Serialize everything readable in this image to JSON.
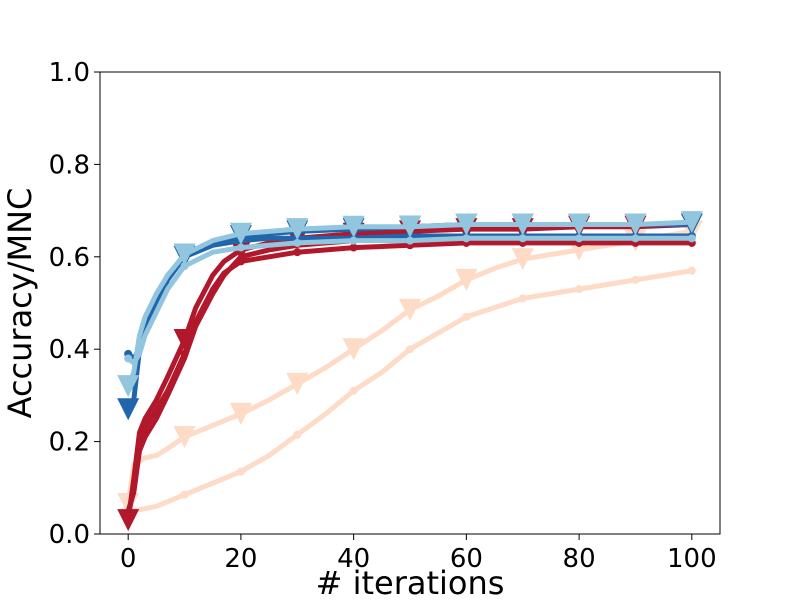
{
  "chart_data": {
    "type": "line",
    "title": "",
    "xlabel": "# iterations",
    "ylabel": "Accuracy/MNC",
    "xlim": [
      -5,
      105
    ],
    "ylim": [
      0.0,
      1.0
    ],
    "xticks": [
      0,
      20,
      40,
      60,
      80,
      100
    ],
    "yticks": [
      0.0,
      0.2,
      0.4,
      0.6,
      0.8,
      1.0
    ],
    "xtick_labels": [
      "0",
      "20",
      "40",
      "60",
      "80",
      "100"
    ],
    "ytick_labels": [
      "0.0",
      "0.2",
      "0.4",
      "0.6",
      "0.8",
      "1.0"
    ],
    "grid": false,
    "legend": false,
    "series": [
      {
        "color": "#fddbc7",
        "marker": "circle",
        "x": [
          0,
          1,
          3,
          5,
          7,
          10,
          15,
          20,
          25,
          30,
          35,
          40,
          45,
          50,
          55,
          60,
          65,
          70,
          75,
          80,
          85,
          90,
          95,
          100
        ],
        "y": [
          0.05,
          0.05,
          0.055,
          0.06,
          0.07,
          0.085,
          0.11,
          0.135,
          0.17,
          0.215,
          0.26,
          0.31,
          0.35,
          0.4,
          0.435,
          0.47,
          0.49,
          0.51,
          0.52,
          0.53,
          0.54,
          0.55,
          0.56,
          0.57
        ]
      },
      {
        "color": "#fddbc7",
        "marker": "triangle-down",
        "x": [
          0,
          1,
          3,
          5,
          7,
          10,
          15,
          20,
          25,
          30,
          35,
          40,
          45,
          50,
          55,
          60,
          65,
          70,
          75,
          80,
          85,
          90,
          95,
          100
        ],
        "y": [
          0.065,
          0.15,
          0.165,
          0.17,
          0.185,
          0.21,
          0.235,
          0.26,
          0.29,
          0.325,
          0.36,
          0.4,
          0.44,
          0.485,
          0.515,
          0.55,
          0.575,
          0.595,
          0.605,
          0.615,
          0.625,
          0.635,
          0.645,
          0.655
        ]
      },
      {
        "color": "#b2182b",
        "marker": "circle",
        "x": [
          0,
          1,
          2,
          3,
          5,
          7,
          10,
          12,
          15,
          17,
          20,
          25,
          30,
          40,
          50,
          60,
          70,
          80,
          90,
          100
        ],
        "y": [
          0.04,
          0.1,
          0.2,
          0.23,
          0.27,
          0.31,
          0.39,
          0.46,
          0.53,
          0.565,
          0.59,
          0.6,
          0.61,
          0.62,
          0.625,
          0.63,
          0.63,
          0.63,
          0.63,
          0.63
        ]
      },
      {
        "color": "#b2182b",
        "marker": "triangle-down",
        "x": [
          0,
          1,
          2,
          3,
          5,
          7,
          10,
          12,
          15,
          17,
          20,
          25,
          30,
          40,
          50,
          60,
          70,
          80,
          90,
          100
        ],
        "y": [
          0.03,
          0.12,
          0.22,
          0.25,
          0.29,
          0.34,
          0.42,
          0.49,
          0.56,
          0.59,
          0.615,
          0.63,
          0.64,
          0.65,
          0.655,
          0.66,
          0.66,
          0.665,
          0.665,
          0.67
        ]
      },
      {
        "color": "#b2182b",
        "marker": "none",
        "x": [
          0,
          1,
          2,
          3,
          5,
          7,
          10,
          12,
          15,
          17,
          20,
          25,
          30,
          40,
          50,
          60,
          70,
          80,
          90,
          100
        ],
        "y": [
          0.05,
          0.09,
          0.18,
          0.21,
          0.25,
          0.3,
          0.38,
          0.45,
          0.52,
          0.56,
          0.6,
          0.615,
          0.625,
          0.635,
          0.64,
          0.645,
          0.645,
          0.645,
          0.645,
          0.645
        ]
      },
      {
        "color": "#2166ac",
        "marker": "circle",
        "x": [
          0,
          1,
          2,
          3,
          5,
          7,
          10,
          15,
          20,
          25,
          30,
          40,
          50,
          60,
          70,
          80,
          90,
          100
        ],
        "y": [
          0.39,
          0.38,
          0.4,
          0.46,
          0.5,
          0.56,
          0.6,
          0.625,
          0.635,
          0.64,
          0.64,
          0.64,
          0.645,
          0.645,
          0.645,
          0.645,
          0.645,
          0.645
        ]
      },
      {
        "color": "#2166ac",
        "marker": "triangle-down",
        "x": [
          0,
          1,
          2,
          3,
          5,
          7,
          10,
          15,
          20,
          25,
          30,
          40,
          50,
          60,
          70,
          80,
          90,
          100
        ],
        "y": [
          0.27,
          0.29,
          0.4,
          0.44,
          0.49,
          0.55,
          0.6,
          0.63,
          0.645,
          0.65,
          0.655,
          0.66,
          0.665,
          0.67,
          0.67,
          0.67,
          0.67,
          0.67
        ]
      },
      {
        "color": "#92c5de",
        "marker": "circle",
        "x": [
          0,
          1,
          2,
          3,
          5,
          7,
          10,
          15,
          20,
          25,
          30,
          40,
          50,
          60,
          70,
          80,
          90,
          100
        ],
        "y": [
          0.38,
          0.37,
          0.39,
          0.43,
          0.48,
          0.53,
          0.58,
          0.61,
          0.62,
          0.625,
          0.63,
          0.635,
          0.635,
          0.64,
          0.64,
          0.64,
          0.64,
          0.64
        ]
      },
      {
        "color": "#92c5de",
        "marker": "triangle-down",
        "x": [
          0,
          1,
          2,
          3,
          5,
          7,
          10,
          15,
          20,
          25,
          30,
          40,
          50,
          60,
          70,
          80,
          90,
          100
        ],
        "y": [
          0.32,
          0.35,
          0.43,
          0.47,
          0.52,
          0.56,
          0.605,
          0.635,
          0.65,
          0.655,
          0.66,
          0.665,
          0.665,
          0.67,
          0.67,
          0.67,
          0.67,
          0.675
        ]
      }
    ]
  }
}
